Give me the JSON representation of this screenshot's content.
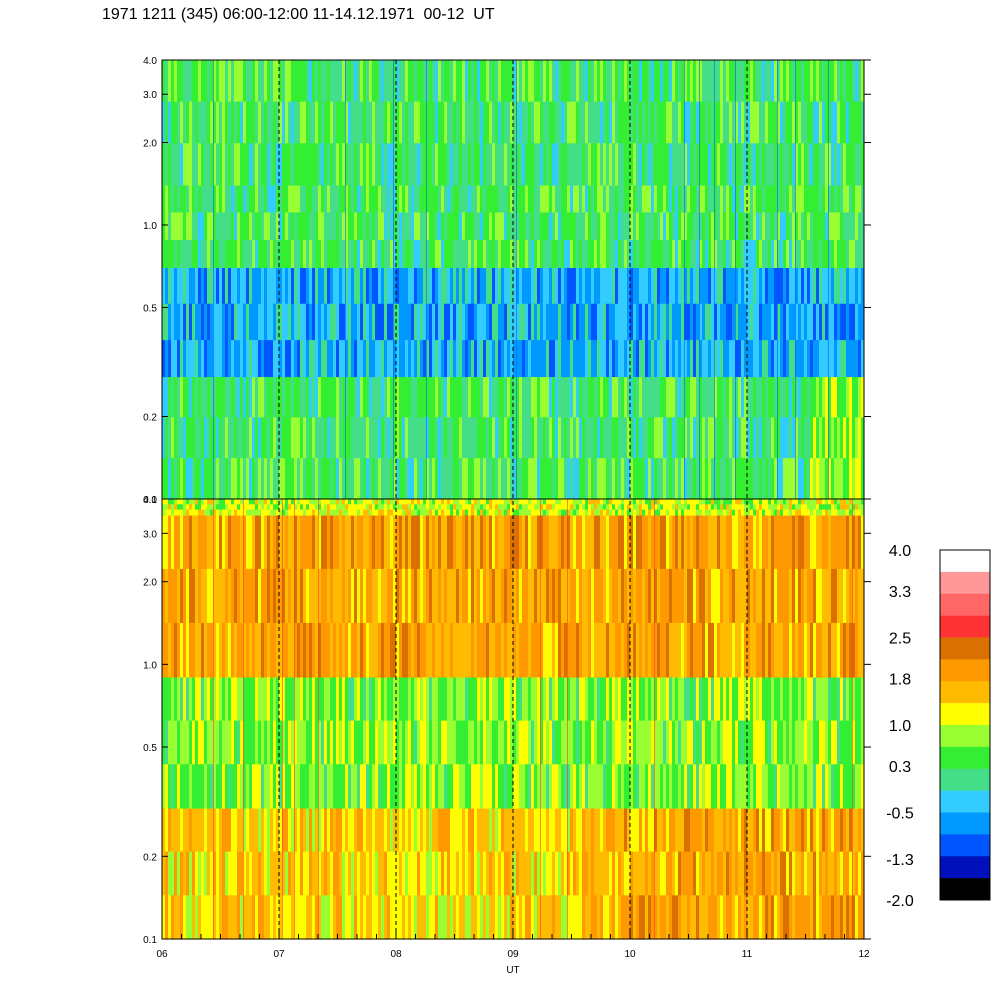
{
  "title": "1971 1211 (345) 06:00-12:00 11-14.12.1971  00-12  UT",
  "chart_data": [
    {
      "type": "heatmap",
      "panel": "top",
      "y_ticks": [
        "0.1",
        "0.2",
        "0.5",
        "1.0",
        "2.0",
        "3.0",
        "4.0"
      ],
      "y_values": [
        0.1,
        0.2,
        0.5,
        1.0,
        2.0,
        3.0,
        4.0
      ],
      "ylim": [
        0.1,
        4.0
      ],
      "y_scale": "log",
      "xlim": [
        6,
        12
      ],
      "dominant_level_by_y": [
        {
          "y_range": [
            0.1,
            0.28
          ],
          "level": 0.3
        },
        {
          "y_range": [
            0.28,
            0.7
          ],
          "level": -0.5
        },
        {
          "y_range": [
            0.7,
            1.4
          ],
          "level": 0.3
        },
        {
          "y_range": [
            1.4,
            4.0
          ],
          "level": 0.3
        }
      ]
    },
    {
      "type": "heatmap",
      "panel": "bottom",
      "y_ticks": [
        "0.1",
        "0.2",
        "0.5",
        "1.0",
        "2.0",
        "3.0",
        "4.0"
      ],
      "y_values": [
        0.1,
        0.2,
        0.5,
        1.0,
        2.0,
        3.0,
        4.0
      ],
      "ylim": [
        0.1,
        4.0
      ],
      "y_scale": "log",
      "xlim": [
        6,
        12
      ],
      "dominant_level_by_y": [
        {
          "y_range": [
            0.1,
            0.3
          ],
          "level": 1.4
        },
        {
          "y_range": [
            0.3,
            0.9
          ],
          "level": 0.7
        },
        {
          "y_range": [
            0.9,
            3.5
          ],
          "level": 1.8
        },
        {
          "y_range": [
            3.5,
            4.0
          ],
          "level": 1.0
        }
      ]
    }
  ],
  "x_axis": {
    "label": "UT",
    "ticks": [
      "06",
      "07",
      "08",
      "09",
      "10",
      "11",
      "12"
    ],
    "values": [
      6,
      7,
      8,
      9,
      10,
      11,
      12
    ],
    "dashed_gridlines_at": [
      7,
      8,
      9,
      10,
      11
    ]
  },
  "colorbar": {
    "labels": [
      "4.0",
      "3.3",
      "2.5",
      "1.8",
      "1.0",
      "0.3",
      "-0.5",
      "-1.3",
      "-2.0"
    ],
    "label_values": [
      4.0,
      3.3,
      2.5,
      1.8,
      1.0,
      0.3,
      -0.5,
      -1.3,
      -2.0
    ],
    "colors_top_to_bottom": [
      "#ffffff",
      "#ff9999",
      "#ff6666",
      "#ff3333",
      "#d97000",
      "#ff9900",
      "#ffbb00",
      "#ffff00",
      "#99ff33",
      "#33ee33",
      "#44dd88",
      "#33ccff",
      "#0099ff",
      "#0055ff",
      "#0011bb",
      "#000000"
    ],
    "range": [
      -2.0,
      4.0
    ]
  }
}
